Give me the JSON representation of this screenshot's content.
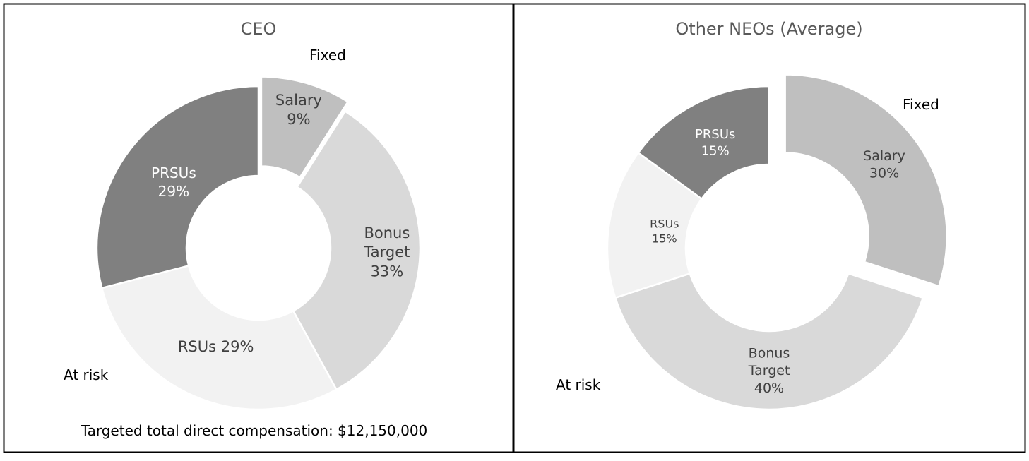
{
  "chart_data": [
    {
      "type": "pie",
      "title": "CEO",
      "fixed_label": "Fixed",
      "at_risk_label": "At risk",
      "footnote": "Targeted total direct compensation: $12,150,000",
      "slices": [
        {
          "name": "Salary",
          "value": 9,
          "label_lines": [
            "Salary",
            "9%"
          ],
          "color": "#bfbfbf",
          "text_color": "#404040",
          "exploded": true
        },
        {
          "name": "Bonus Target",
          "value": 33,
          "label_lines": [
            "Bonus",
            "Target",
            "33%"
          ],
          "color": "#d9d9d9",
          "text_color": "#404040",
          "exploded": false
        },
        {
          "name": "RSUs",
          "value": 29,
          "label_lines": [
            "RSUs 29%"
          ],
          "color": "#f2f2f2",
          "text_color": "#404040",
          "exploded": false
        },
        {
          "name": "PRSUs",
          "value": 29,
          "label_lines": [
            "PRSUs",
            "29%"
          ],
          "color": "#808080",
          "text_color": "#ffffff",
          "exploded": false
        }
      ]
    },
    {
      "type": "pie",
      "title": "Other NEOs (Average)",
      "fixed_label": "Fixed",
      "at_risk_label": "At risk",
      "slices": [
        {
          "name": "Salary",
          "value": 30,
          "label_lines": [
            "Salary",
            "30%"
          ],
          "color": "#bfbfbf",
          "text_color": "#404040",
          "exploded": true
        },
        {
          "name": "Bonus Target",
          "value": 40,
          "label_lines": [
            "Bonus",
            "Target",
            "40%"
          ],
          "color": "#d9d9d9",
          "text_color": "#404040",
          "exploded": false
        },
        {
          "name": "RSUs",
          "value": 15,
          "label_lines": [
            "RSUs",
            "15%"
          ],
          "color": "#f2f2f2",
          "text_color": "#404040",
          "exploded": false
        },
        {
          "name": "PRSUs",
          "value": 15,
          "label_lines": [
            "PRSUs",
            "15%"
          ],
          "color": "#808080",
          "text_color": "#ffffff",
          "exploded": false
        }
      ]
    }
  ]
}
